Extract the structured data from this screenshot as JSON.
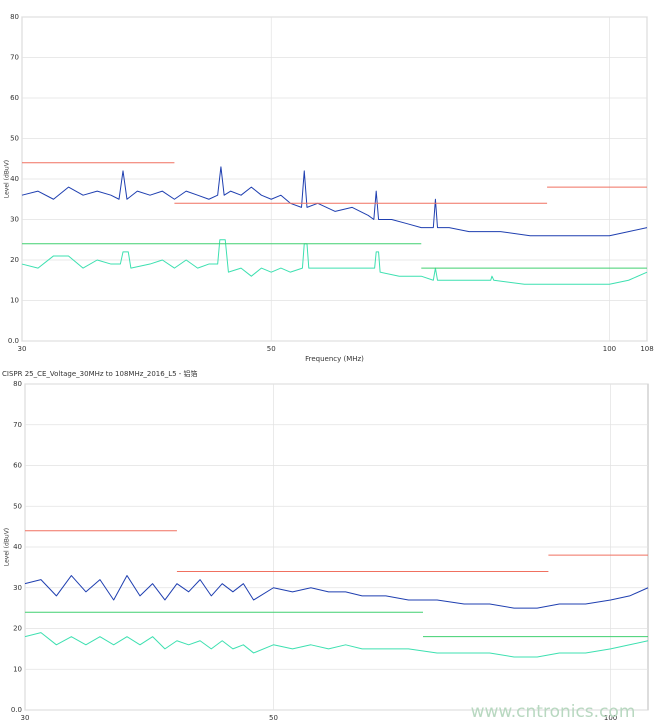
{
  "watermark": "www.cntronics.com",
  "chart_data": [
    {
      "type": "line",
      "xscale": "log",
      "grid": true,
      "xlabel": "Frequency (MHz)",
      "ylabel": "Level (dBuV)",
      "xlim": [
        30,
        108
      ],
      "xticks": [
        30,
        50,
        100,
        108
      ],
      "ylim": [
        0,
        80
      ],
      "yticks": [
        {
          "value": 0,
          "label": "0.0"
        },
        10,
        20,
        30,
        40,
        50,
        60,
        70,
        80
      ],
      "series": [
        {
          "color": "#1f3fb0",
          "x": [
            30,
            31,
            32,
            33,
            34,
            35,
            36,
            36.6,
            36.9,
            37.2,
            38,
            39,
            40,
            41,
            42,
            43,
            44,
            44.8,
            45.1,
            45.4,
            46,
            47,
            48,
            49,
            50,
            51,
            52,
            53.2,
            53.5,
            53.8,
            55,
            57,
            59,
            61,
            61.7,
            62,
            62.3,
            64,
            66,
            68,
            69.7,
            70,
            70.3,
            72,
            75,
            80,
            85,
            90,
            95,
            100,
            104,
            108
          ],
          "values": [
            36,
            37,
            35,
            38,
            36,
            37,
            36,
            35,
            42,
            35,
            37,
            36,
            37,
            35,
            37,
            36,
            35,
            36,
            43,
            36,
            37,
            36,
            38,
            36,
            35,
            36,
            34,
            33,
            42,
            33,
            34,
            32,
            33,
            31,
            30,
            37,
            30,
            30,
            29,
            28,
            28,
            35,
            28,
            28,
            27,
            27,
            26,
            26,
            26,
            26,
            27,
            28
          ]
        },
        {
          "color": "#3de0b0",
          "x": [
            30,
            31,
            32,
            33,
            34,
            35,
            36,
            36.7,
            36.9,
            37.3,
            37.5,
            39,
            40,
            41,
            42,
            43,
            44,
            44.8,
            45,
            45.5,
            45.8,
            47,
            48,
            49,
            50,
            51,
            52,
            53.3,
            53.5,
            53.8,
            54,
            56,
            58,
            60,
            61.8,
            62,
            62.3,
            62.5,
            65,
            68,
            69.7,
            70,
            70.3,
            74,
            78.4,
            78.6,
            78.9,
            84,
            90,
            95,
            100,
            104,
            108
          ],
          "values": [
            19,
            18,
            21,
            21,
            18,
            20,
            19,
            19,
            22,
            22,
            18,
            19,
            20,
            18,
            20,
            18,
            19,
            19,
            25,
            25,
            17,
            18,
            16,
            18,
            17,
            18,
            17,
            18,
            24,
            24,
            18,
            18,
            18,
            18,
            18,
            22,
            22,
            17,
            16,
            16,
            15,
            18,
            15,
            15,
            15,
            16,
            15,
            14,
            14,
            14,
            14,
            15,
            17
          ]
        },
        {
          "color": "#f07060",
          "x": [
            30,
            41,
            41,
            41,
            88,
            88,
            88,
            108
          ],
          "values": [
            44,
            44,
            null,
            34,
            34,
            null,
            38,
            38
          ]
        },
        {
          "color": "#40d070",
          "x": [
            30,
            68,
            68,
            68,
            108
          ],
          "values": [
            24,
            24,
            null,
            18,
            18
          ]
        }
      ]
    },
    {
      "type": "line",
      "xscale": "log",
      "grid": true,
      "title": "CISPR 25_CE_Voltage_30MHz to 108MHz_2016_L5 - 铝箔",
      "ylabel": "Level (dBuV)",
      "xlim": [
        30,
        108
      ],
      "xticks": [
        30,
        50,
        100
      ],
      "ylim": [
        0,
        80
      ],
      "yticks": [
        {
          "value": 0,
          "label": "0.0"
        },
        10,
        20,
        30,
        40,
        50,
        60,
        70,
        80
      ],
      "series": [
        {
          "color": "#1f3fb0",
          "x": [
            30,
            31,
            32,
            33,
            34,
            35,
            36,
            37,
            38,
            39,
            40,
            41,
            42,
            43,
            44,
            45,
            46,
            47,
            48,
            50,
            52,
            54,
            56,
            58,
            60,
            63,
            66,
            70,
            74,
            78,
            82,
            86,
            90,
            95,
            100,
            104,
            108
          ],
          "values": [
            31,
            32,
            28,
            33,
            29,
            32,
            27,
            33,
            28,
            31,
            27,
            31,
            29,
            32,
            28,
            31,
            29,
            31,
            27,
            30,
            29,
            30,
            29,
            29,
            28,
            28,
            27,
            27,
            26,
            26,
            25,
            25,
            26,
            26,
            27,
            28,
            30
          ]
        },
        {
          "color": "#3de0b0",
          "x": [
            30,
            31,
            32,
            33,
            34,
            35,
            36,
            37,
            38,
            39,
            40,
            41,
            42,
            43,
            44,
            45,
            46,
            47,
            48,
            50,
            52,
            54,
            56,
            58,
            60,
            63,
            66,
            70,
            74,
            78,
            82,
            86,
            90,
            95,
            100,
            104,
            108
          ],
          "values": [
            18,
            19,
            16,
            18,
            16,
            18,
            16,
            18,
            16,
            18,
            15,
            17,
            16,
            17,
            15,
            17,
            15,
            16,
            14,
            16,
            15,
            16,
            15,
            16,
            15,
            15,
            15,
            14,
            14,
            14,
            13,
            13,
            14,
            14,
            15,
            16,
            17
          ]
        },
        {
          "color": "#f07060",
          "x": [
            30,
            41,
            41,
            41,
            88,
            88,
            88,
            108
          ],
          "values": [
            44,
            44,
            null,
            34,
            34,
            null,
            38,
            38
          ]
        },
        {
          "color": "#40d070",
          "x": [
            30,
            68,
            68,
            68,
            108
          ],
          "values": [
            24,
            24,
            null,
            18,
            18
          ]
        }
      ]
    }
  ]
}
